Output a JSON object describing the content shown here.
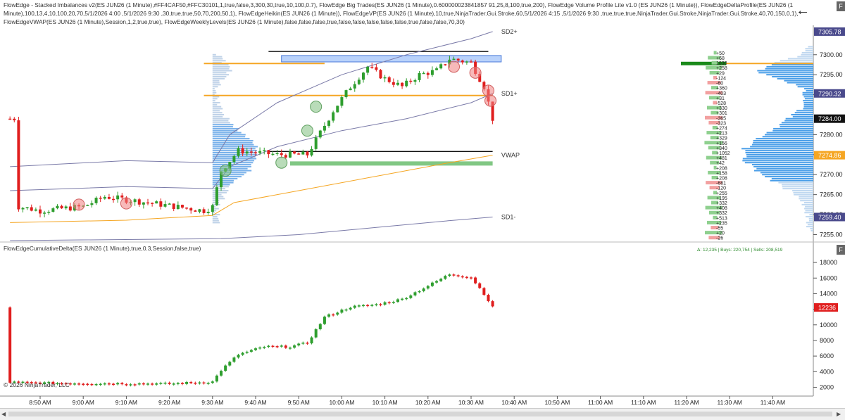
{
  "indicator_text": "FlowEdge - Stacked Imbalances v2(ES JUN26 (1 Minute),#FF4CAF50,#FFC30101,1,true,false,3,300,30,true,10,100,0.7), FlowEdge Big Trades(ES JUN26 (1 Minute),0.600000023841857 91,25,8,100,true,200), FlowEdge Volume Profile Lite v1.0 (ES JUN26 (1 Minute)), FlowEdgeDeltaProfile(ES JUN26 (1 Minute),100,13,4,10,100,20,70,5/1/2026 4:00 ,5/1/2026 9:30 ,30,true,true,50,70,200,50,1), FlowEdgeHeikin(ES JUN26 (1 Minute)), FlowEdgeVP(ES JUN26 (1 Minute),10,true,NinjaTrader.Gui.Stroke,60,5/1/2026 4:15 ,5/1/2026 9:30 ,true,true,true,NinjaTrader.Gui.Stroke,NinjaTrader.Gui.Stroke,40,70,150,0,1), FlowEdgeVWAP(ES JUN26 (1 Minute),Session,1,2,true,true), FlowEdgeWeeklyLevels(ES JUN26 (1 Minute),false,false,false,true,false,false,false,false,false,true,false,false,70,30)",
  "cd_text": "FlowEdgeCumulativeDelta(ES JUN26 (1 Minute),true,0.3,Session,false,true)",
  "cd_stats": "Δ: 12,235 | Buys: 220,754 | Sells: 208,519",
  "copyright": "© 2026 NinjaTrader, LLC",
  "back_icon": "←",
  "corner_label": "F",
  "colors": {
    "up": "#2e9e2e",
    "down": "#e01e1e",
    "vwap": "#f5a623",
    "band": "#7a7aa8",
    "level": "#f5a623",
    "profile": "#5aa0e0",
    "poc": "#1a8a1a"
  },
  "chart_data": [
    {
      "type": "candlestick",
      "name": "price",
      "x": [
        "8:50 AM",
        "9:00 AM",
        "9:10 AM",
        "9:20 AM",
        "9:30 AM",
        "9:40 AM",
        "9:50 AM",
        "10:00 AM",
        "10:10 AM",
        "10:20 AM",
        "10:30 AM",
        "10:40 AM",
        "10:50 AM",
        "11:00 AM",
        "11:10 AM",
        "11:20 AM",
        "11:30 AM",
        "11:40 AM"
      ],
      "y_ticks": [
        7255,
        7260,
        7265,
        7270,
        7275,
        7280,
        7290,
        7295,
        7300
      ],
      "ylim": [
        7253.5,
        7307
      ],
      "price_labels": [
        {
          "value": 7305.78,
          "label": "7305.78",
          "color": "#4a4a8c"
        },
        {
          "value": 7290.32,
          "label": "7290.32",
          "color": "#4a4a8c"
        },
        {
          "value": 7284.0,
          "label": "7284.00",
          "color": "#111111"
        },
        {
          "value": 7274.86,
          "label": "7274.86",
          "color": "#f5a623"
        },
        {
          "value": 7259.4,
          "label": "7259.40",
          "color": "#4a4a8c"
        }
      ],
      "band_labels": [
        {
          "label": "SD2+",
          "value": 7305.78
        },
        {
          "label": "SD1+",
          "value": 7290.32
        },
        {
          "label": "VWAP",
          "value": 7274.86
        },
        {
          "label": "SD1-",
          "value": 7259.4
        }
      ],
      "horizontal_levels": [
        {
          "value": 7300.8,
          "color": "#111111"
        },
        {
          "value": 7297.8,
          "color": "#f5a623"
        },
        {
          "value": 7289.8,
          "color": "#f5a623"
        },
        {
          "value": 7275.8,
          "color": "#111111"
        },
        {
          "value": 7272.8,
          "color": "#4caf50"
        }
      ],
      "zone": {
        "low": 7298.2,
        "high": 7299.8
      },
      "session_start": "9:30 AM",
      "last_value": 7284.0,
      "delta_values": [
        "+50",
        "+68",
        "1838",
        "+258",
        "+29",
        "-124",
        "-60",
        "+360",
        "-403",
        "+31",
        "-528",
        "+330",
        "+301",
        "-365",
        "-323",
        "+274",
        "+213",
        "+329",
        "+156",
        "+340",
        "+1052",
        "+481",
        "+42",
        "+208",
        "+158",
        "+208",
        "-681",
        "-120",
        "+255",
        "+195",
        "+332",
        "+408",
        "+332",
        "+513",
        "+235",
        "-55",
        "+20",
        "-26"
      ]
    },
    {
      "type": "candlestick",
      "name": "cumulative_delta",
      "y_ticks": [
        2000,
        4000,
        6000,
        8000,
        10000,
        12000,
        14000,
        16000,
        18000
      ],
      "ylim": [
        1500,
        19000
      ],
      "last_value": 12236,
      "last_label": "12236"
    }
  ]
}
